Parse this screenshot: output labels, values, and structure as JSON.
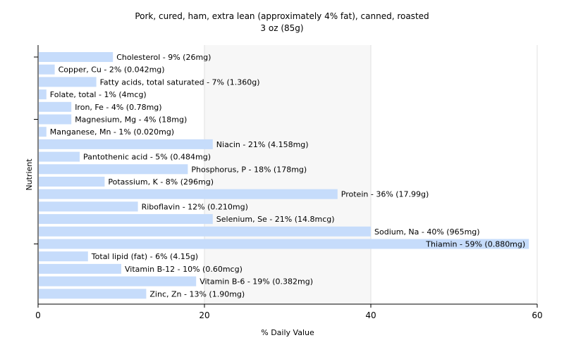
{
  "chart_data": {
    "type": "bar",
    "orientation": "horizontal",
    "title": "Pork, cured, ham, extra lean (approximately 4% fat), canned, roasted",
    "subtitle": "3 oz (85g)",
    "xlabel": "% Daily Value",
    "ylabel": "Nutrient",
    "xlim": [
      0,
      60
    ],
    "xticks": [
      0,
      20,
      40,
      60
    ],
    "grid": true,
    "legend": "none",
    "bar_color": "#c6dcfb",
    "categories": [
      "Cholesterol",
      "Copper, Cu",
      "Fatty acids, total saturated",
      "Folate, total",
      "Iron, Fe",
      "Magnesium, Mg",
      "Manganese, Mn",
      "Niacin",
      "Pantothenic acid",
      "Phosphorus, P",
      "Potassium, K",
      "Protein",
      "Riboflavin",
      "Selenium, Se",
      "Sodium, Na",
      "Thiamin",
      "Total lipid (fat)",
      "Vitamin B-12",
      "Vitamin B-6",
      "Zinc, Zn"
    ],
    "values": [
      9,
      2,
      7,
      1,
      4,
      4,
      1,
      21,
      5,
      18,
      8,
      36,
      12,
      21,
      40,
      59,
      6,
      10,
      19,
      13
    ],
    "labels": [
      "Cholesterol - 9% (26mg)",
      "Copper, Cu - 2% (0.042mg)",
      "Fatty acids, total saturated - 7% (1.360g)",
      "Folate, total - 1% (4mcg)",
      "Iron, Fe - 4% (0.78mg)",
      "Magnesium, Mg - 4% (18mg)",
      "Manganese, Mn - 1% (0.020mg)",
      "Niacin - 21% (4.158mg)",
      "Pantothenic acid - 5% (0.484mg)",
      "Phosphorus, P - 18% (178mg)",
      "Potassium, K - 8% (296mg)",
      "Protein - 36% (17.99g)",
      "Riboflavin - 12% (0.210mg)",
      "Selenium, Se - 21% (14.8mcg)",
      "Sodium, Na - 40% (965mg)",
      "Thiamin - 59% (0.880mg)",
      "Total lipid (fat) - 6% (4.15g)",
      "Vitamin B-12 - 10% (0.60mcg)",
      "Vitamin B-6 - 19% (0.382mg)",
      "Zinc, Zn - 13% (1.90mg)"
    ]
  }
}
